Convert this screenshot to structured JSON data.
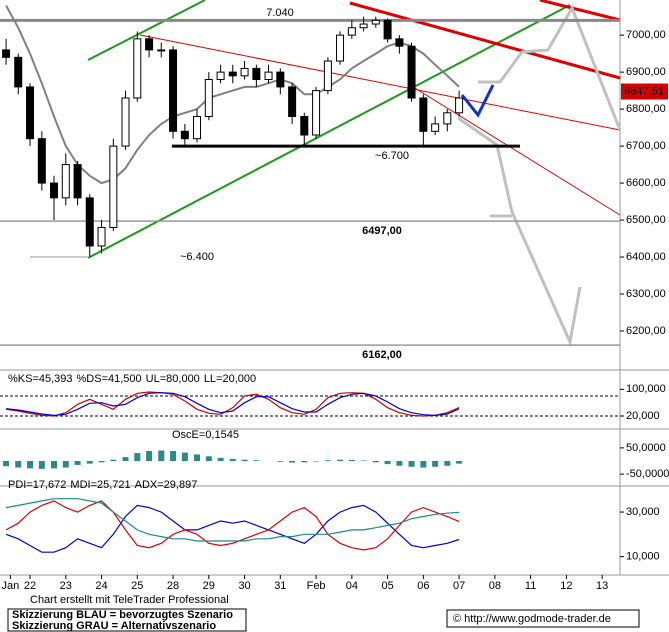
{
  "chart_data": [
    {
      "type": "candlestick",
      "xlim": [
        -0.84,
        16.5
      ],
      "xticks": [
        {
          "value": -0.55,
          "label": "Jan"
        },
        {
          "value": 0,
          "label": "22"
        },
        {
          "value": 1,
          "label": "23"
        },
        {
          "value": 2,
          "label": "24"
        },
        {
          "value": 3,
          "label": "25"
        },
        {
          "value": 4,
          "label": "28"
        },
        {
          "value": 5,
          "label": "29"
        },
        {
          "value": 6,
          "label": "30"
        },
        {
          "value": 7,
          "label": "31"
        },
        {
          "value": 8,
          "label": "Feb"
        },
        {
          "value": 9,
          "label": "04"
        },
        {
          "value": 10,
          "label": "05"
        },
        {
          "value": 11,
          "label": "06"
        },
        {
          "value": 12,
          "label": "07"
        },
        {
          "value": 13,
          "label": "08"
        },
        {
          "value": 14,
          "label": "11"
        },
        {
          "value": 15,
          "label": "12"
        },
        {
          "value": 16,
          "label": "13"
        }
      ],
      "ylim": [
        6100,
        7095
      ],
      "yticks": [
        {
          "value": 6200,
          "label": "6200,00"
        },
        {
          "value": 6300,
          "label": "6300,00"
        },
        {
          "value": 6400,
          "label": "6400,00"
        },
        {
          "value": 6500,
          "label": "6500,00"
        },
        {
          "value": 6600,
          "label": "6600,00"
        },
        {
          "value": 6700,
          "label": "6700,00"
        },
        {
          "value": 6800,
          "label": "6800,00"
        },
        {
          "value": 6900,
          "label": "6900,00"
        },
        {
          "value": 7000,
          "label": "7000,00"
        }
      ],
      "x": [
        -0.67,
        -0.33,
        0,
        0.33,
        0.67,
        1,
        1.33,
        1.67,
        2,
        2.33,
        2.67,
        3,
        3.33,
        3.67,
        4,
        4.33,
        4.67,
        5,
        5.33,
        5.67,
        6,
        6.33,
        6.67,
        7,
        7.33,
        7.67,
        8,
        8.33,
        8.67,
        9,
        9.33,
        9.67,
        10,
        10.33,
        10.67,
        11,
        11.33,
        11.67,
        12
      ],
      "open": [
        6960,
        6940,
        6860,
        6720,
        6600,
        6560,
        6650,
        6560,
        6430,
        6480,
        6700,
        6830,
        6990,
        6960,
        6960,
        6740,
        6720,
        6780,
        6880,
        6900,
        6890,
        6910,
        6880,
        6900,
        6860,
        6780,
        6730,
        6850,
        6930,
        7000,
        7020,
        7030,
        7040,
        6990,
        6970,
        6830,
        6740,
        6760,
        6790
      ],
      "high": [
        6990,
        6950,
        6870,
        6740,
        6620,
        6680,
        6660,
        6570,
        6500,
        6720,
        6850,
        7010,
        7000,
        6980,
        6970,
        6760,
        6800,
        6900,
        6920,
        6920,
        6930,
        6920,
        6920,
        6910,
        6870,
        6790,
        6860,
        6940,
        7010,
        7040,
        7050,
        7050,
        7045,
        7000,
        6980,
        6840,
        6780,
        6800,
        6850
      ],
      "low": [
        6920,
        6840,
        6700,
        6580,
        6500,
        6540,
        6540,
        6400,
        6410,
        6470,
        6690,
        6820,
        6940,
        6940,
        6720,
        6700,
        6710,
        6770,
        6870,
        6870,
        6880,
        6860,
        6870,
        6840,
        6760,
        6700,
        6720,
        6840,
        6920,
        6990,
        7010,
        7020,
        6980,
        6950,
        6820,
        6700,
        6730,
        6740,
        6780
      ],
      "close": [
        6940,
        6860,
        6720,
        6600,
        6560,
        6650,
        6560,
        6430,
        6480,
        6700,
        6830,
        6990,
        6960,
        6960,
        6740,
        6720,
        6780,
        6880,
        6900,
        6890,
        6910,
        6880,
        6900,
        6860,
        6780,
        6730,
        6850,
        6930,
        7000,
        7020,
        7030,
        7040,
        6990,
        6970,
        6830,
        6740,
        6760,
        6790,
        6830
      ],
      "up_color": "#ffffff",
      "down_color": "#000000",
      "moving_average": {
        "color": "#808080",
        "values": [
          7080,
          7020,
          6950,
          6870,
          6780,
          6700,
          6650,
          6620,
          6600,
          6610,
          6640,
          6690,
          6730,
          6760,
          6780,
          6790,
          6800,
          6830,
          6840,
          6850,
          6860,
          6860,
          6870,
          6880,
          6870,
          6840,
          6840,
          6860,
          6880,
          6910,
          6930,
          6950,
          6970,
          6980,
          6970,
          6950,
          6920,
          6890,
          6860
        ]
      },
      "levels": [
        {
          "value": 7040,
          "label": "7.040"
        },
        {
          "value": 6700,
          "label": "~6.700"
        },
        {
          "value": 6497,
          "label": "6497,00"
        },
        {
          "value": 6162,
          "label": "6162,00"
        },
        {
          "value": 6400,
          "label": "~6.400"
        }
      ],
      "last_price": {
        "value": 6847.51,
        "label": "6847,51",
        "color": "#d40000"
      }
    },
    {
      "type": "line",
      "ylim": [
        -10,
        110
      ],
      "yticks": [
        {
          "value": 100,
          "label": "100,000"
        },
        {
          "value": 20,
          "label": "20,000"
        }
      ],
      "series": [
        {
          "name": "%KS=45,393",
          "color": "#cc0000",
          "values": [
            40,
            35,
            28,
            22,
            20,
            30,
            55,
            70,
            55,
            40,
            70,
            88,
            92,
            90,
            85,
            65,
            40,
            28,
            25,
            45,
            80,
            85,
            70,
            45,
            30,
            25,
            40,
            75,
            88,
            90,
            88,
            70,
            45,
            30,
            22,
            20,
            22,
            30,
            45.393
          ]
        },
        {
          "name": "%DS=41,500",
          "color": "#0000cc",
          "values": [
            42,
            38,
            32,
            26,
            22,
            25,
            40,
            58,
            60,
            50,
            55,
            75,
            88,
            90,
            88,
            78,
            58,
            40,
            30,
            35,
            60,
            78,
            78,
            60,
            42,
            32,
            32,
            55,
            75,
            85,
            88,
            80,
            62,
            42,
            30,
            24,
            22,
            26,
            41.5
          ]
        }
      ],
      "levels": [
        {
          "value": 80,
          "label": "UL=80,000"
        },
        {
          "value": 20,
          "label": "LL=20,000"
        }
      ]
    },
    {
      "type": "bar",
      "title": "OscE=0,1545",
      "color": "#2a8a8a",
      "ylim": [
        -80,
        80
      ],
      "yticks": [
        {
          "value": 50,
          "label": "50,0000"
        },
        {
          "value": -50,
          "label": "-50,0000"
        }
      ],
      "values": [
        -20,
        -25,
        -28,
        -30,
        -28,
        -25,
        -15,
        -10,
        -5,
        5,
        15,
        30,
        38,
        40,
        38,
        32,
        25,
        18,
        12,
        8,
        5,
        3,
        0,
        -3,
        -6,
        -5,
        -2,
        3,
        5,
        4,
        2,
        -5,
        -12,
        -18,
        -22,
        -25,
        -22,
        -18,
        -10
      ]
    },
    {
      "type": "line",
      "ylim": [
        4,
        39
      ],
      "yticks": [
        {
          "value": 30,
          "label": "30,000"
        },
        {
          "value": 10,
          "label": "10,000"
        }
      ],
      "series": [
        {
          "name": "PDI=17,672",
          "color": "#0000cc",
          "values": [
            20,
            18,
            15,
            12,
            12,
            14,
            18,
            16,
            14,
            20,
            28,
            33,
            32,
            30,
            26,
            22,
            22,
            24,
            26,
            25,
            26,
            24,
            22,
            20,
            18,
            16,
            20,
            26,
            30,
            32,
            33,
            30,
            25,
            20,
            15,
            14,
            15,
            16,
            17.672
          ]
        },
        {
          "name": "MDI=25,721",
          "color": "#dd0000",
          "values": [
            22,
            25,
            30,
            33,
            35,
            32,
            30,
            33,
            35,
            30,
            22,
            15,
            14,
            16,
            20,
            22,
            20,
            16,
            15,
            16,
            18,
            20,
            22,
            26,
            30,
            32,
            28,
            20,
            16,
            14,
            13,
            14,
            18,
            24,
            30,
            32,
            30,
            28,
            25.721
          ]
        },
        {
          "name": "ADX=29,897",
          "color": "#1a8a8a",
          "values": [
            32,
            33,
            34,
            35,
            36,
            36,
            36,
            35,
            34,
            30,
            26,
            22,
            20,
            19,
            18,
            18,
            17,
            17,
            17,
            17,
            17,
            18,
            18,
            19,
            19,
            20,
            20,
            20,
            21,
            22,
            22,
            23,
            24,
            25,
            27,
            28,
            29,
            29.5,
            29.897
          ]
        }
      ]
    }
  ],
  "footer": {
    "credit": "Chart erstellt mit TeleTrader Professional",
    "legend": [
      "Skizzierung BLAU = bevorzugtes Szenario",
      "Skizzierung GRAU = Alternativszenario"
    ],
    "copyright": "© http://www.godmode-trader.de"
  }
}
